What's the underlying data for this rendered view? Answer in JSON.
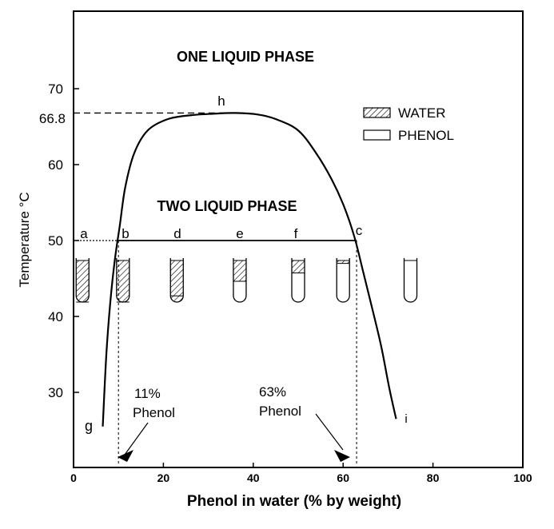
{
  "title_region_one": "ONE LIQUID PHASE",
  "title_region_two": "TWO LIQUID PHASE",
  "critical_label": "h",
  "critical_temp_label": "66.8",
  "point_labels": [
    "a",
    "b",
    "d",
    "e",
    "f",
    "c"
  ],
  "end_label_left": "g",
  "end_label_right": "i",
  "annotation_left": {
    "line1": "11%",
    "line2": "Phenol"
  },
  "annotation_right": {
    "line1": "63%",
    "line2": "Phenol"
  },
  "legend": {
    "water": "WATER",
    "phenol": "PHENOL"
  },
  "colors": {
    "ink": "#000000",
    "background": "#ffffff"
  },
  "chart_data": {
    "type": "line",
    "xlabel": "Phenol in water (% by weight)",
    "ylabel": "Temperature °C",
    "xlim": [
      0,
      100
    ],
    "ylim": [
      20,
      80
    ],
    "x_ticks": [
      "0",
      "20",
      "40",
      "60",
      "80",
      "100"
    ],
    "y_ticks": [
      "30",
      "40",
      "50",
      "60",
      "70"
    ],
    "curve": {
      "x": [
        6.5,
        7.3,
        8.2,
        9.2,
        10.3,
        11.5,
        13.5,
        16.5,
        21,
        26,
        31,
        36,
        41,
        45,
        50,
        54,
        57.5,
        60.2,
        62.5,
        64.5,
        66.5,
        68.5,
        70.3,
        71.8
      ],
      "y": [
        25.5,
        35,
        42,
        47.5,
        52,
        57,
        61.5,
        64.5,
        66,
        66.5,
        66.7,
        66.8,
        66.6,
        66,
        64.5,
        61.5,
        58,
        54.5,
        50.5,
        45.8,
        41,
        36,
        30.5,
        26.5
      ]
    },
    "tie_line": {
      "temperature": 50,
      "x_start": 10,
      "x_end": 63
    },
    "critical_point": {
      "x": 36,
      "y": 66.8
    },
    "tubes": [
      {
        "label": "a",
        "x": 2,
        "water_fraction": 1.0
      },
      {
        "label": "b",
        "x": 11,
        "water_fraction": 1.0
      },
      {
        "label": "d",
        "x": 23,
        "water_fraction": 0.85
      },
      {
        "label": "e",
        "x": 37,
        "water_fraction": 0.5
      },
      {
        "label": "f",
        "x": 50,
        "water_fraction": 0.3
      },
      {
        "label": "c",
        "x": 60,
        "water_fraction": 0.07
      },
      {
        "label": "",
        "x": 75,
        "water_fraction": 0.0
      }
    ]
  }
}
